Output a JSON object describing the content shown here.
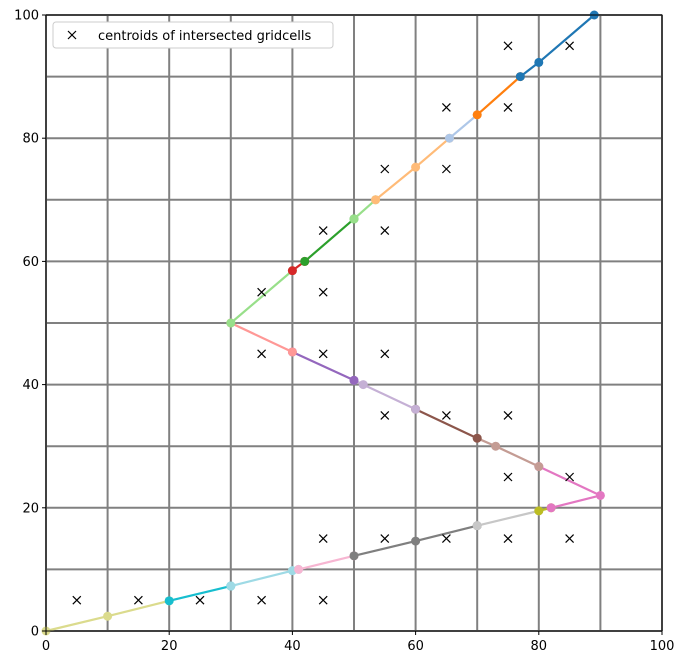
{
  "chart_data": {
    "type": "line",
    "title": "",
    "xlabel": "",
    "ylabel": "",
    "xlim": [
      0,
      100
    ],
    "ylim": [
      0,
      100
    ],
    "grid": true,
    "grid_spacing": 10,
    "x_ticks": [
      0,
      20,
      40,
      60,
      80,
      100
    ],
    "y_ticks": [
      0,
      20,
      40,
      60,
      80,
      100
    ],
    "tick_labels_x": [
      "0",
      "20",
      "40",
      "60",
      "80",
      "100"
    ],
    "tick_labels_y": [
      "0",
      "20",
      "40",
      "60",
      "80",
      "100"
    ],
    "legend": {
      "placement": "top-left",
      "label": "centroids of intersected gridcells",
      "marker": "x"
    },
    "segments": [
      {
        "color": "#dbdb8d",
        "points": [
          [
            0,
            0
          ],
          [
            10,
            2.4
          ],
          [
            20,
            4.9
          ]
        ]
      },
      {
        "color": "#17becf",
        "points": [
          [
            20,
            4.9
          ],
          [
            30,
            7.3
          ]
        ]
      },
      {
        "color": "#9edae5",
        "points": [
          [
            30,
            7.3
          ],
          [
            40,
            9.8
          ],
          [
            41,
            10
          ]
        ]
      },
      {
        "color": "#f7b6d2",
        "points": [
          [
            41,
            10
          ],
          [
            50,
            12.2
          ]
        ]
      },
      {
        "color": "#7f7f7f",
        "points": [
          [
            50,
            12.2
          ],
          [
            60,
            14.6
          ],
          [
            70,
            17.1
          ]
        ]
      },
      {
        "color": "#c7c7c7",
        "points": [
          [
            70,
            17.1
          ],
          [
            80,
            19.5
          ]
        ]
      },
      {
        "color": "#bcbd22",
        "points": [
          [
            80,
            19.5
          ],
          [
            82,
            20
          ]
        ]
      },
      {
        "color": "#e377c2",
        "points": [
          [
            82,
            20
          ],
          [
            90,
            22
          ],
          [
            80,
            26.7
          ]
        ]
      },
      {
        "color": "#c49c94",
        "points": [
          [
            80,
            26.7
          ],
          [
            73,
            30
          ],
          [
            70,
            31.3
          ]
        ]
      },
      {
        "color": "#8c564b",
        "points": [
          [
            70,
            31.3
          ],
          [
            60,
            36
          ]
        ]
      },
      {
        "color": "#c5b0d5",
        "points": [
          [
            60,
            36
          ],
          [
            51.5,
            40
          ],
          [
            50,
            40.7
          ]
        ]
      },
      {
        "color": "#9467bd",
        "points": [
          [
            50,
            40.7
          ],
          [
            40,
            45.3
          ]
        ]
      },
      {
        "color": "#ff9896",
        "points": [
          [
            40,
            45.3
          ],
          [
            30,
            50
          ]
        ]
      },
      {
        "color": "#98df8a",
        "points": [
          [
            30,
            50
          ],
          [
            40,
            58.5
          ]
        ]
      },
      {
        "color": "#d62728",
        "points": [
          [
            40,
            58.5
          ],
          [
            42,
            60
          ]
        ]
      },
      {
        "color": "#2ca02c",
        "points": [
          [
            42,
            60
          ],
          [
            50,
            66.9
          ]
        ]
      },
      {
        "color": "#98df8a",
        "points": [
          [
            50,
            66.9
          ],
          [
            53.5,
            70
          ]
        ]
      },
      {
        "color": "#ffbb78",
        "points": [
          [
            53.5,
            70
          ],
          [
            60,
            75.3
          ],
          [
            65.5,
            80
          ]
        ]
      },
      {
        "color": "#aec7e8",
        "points": [
          [
            65.5,
            80
          ],
          [
            70,
            83.8
          ]
        ]
      },
      {
        "color": "#ff7f0e",
        "points": [
          [
            70,
            83.8
          ],
          [
            77,
            90
          ]
        ]
      },
      {
        "color": "#1f77b4",
        "points": [
          [
            77,
            90
          ],
          [
            80,
            92.3
          ],
          [
            89,
            100
          ]
        ]
      }
    ],
    "centroids": [
      [
        5,
        5
      ],
      [
        15,
        5
      ],
      [
        25,
        5
      ],
      [
        35,
        5
      ],
      [
        45,
        5
      ],
      [
        45,
        15
      ],
      [
        55,
        15
      ],
      [
        65,
        15
      ],
      [
        75,
        15
      ],
      [
        85,
        15
      ],
      [
        75,
        25
      ],
      [
        85,
        25
      ],
      [
        55,
        35
      ],
      [
        65,
        35
      ],
      [
        75,
        35
      ],
      [
        35,
        45
      ],
      [
        45,
        45
      ],
      [
        55,
        45
      ],
      [
        35,
        55
      ],
      [
        45,
        55
      ],
      [
        45,
        65
      ],
      [
        55,
        65
      ],
      [
        55,
        75
      ],
      [
        65,
        75
      ],
      [
        65,
        85
      ],
      [
        75,
        85
      ],
      [
        75,
        95
      ],
      [
        85,
        95
      ]
    ]
  }
}
